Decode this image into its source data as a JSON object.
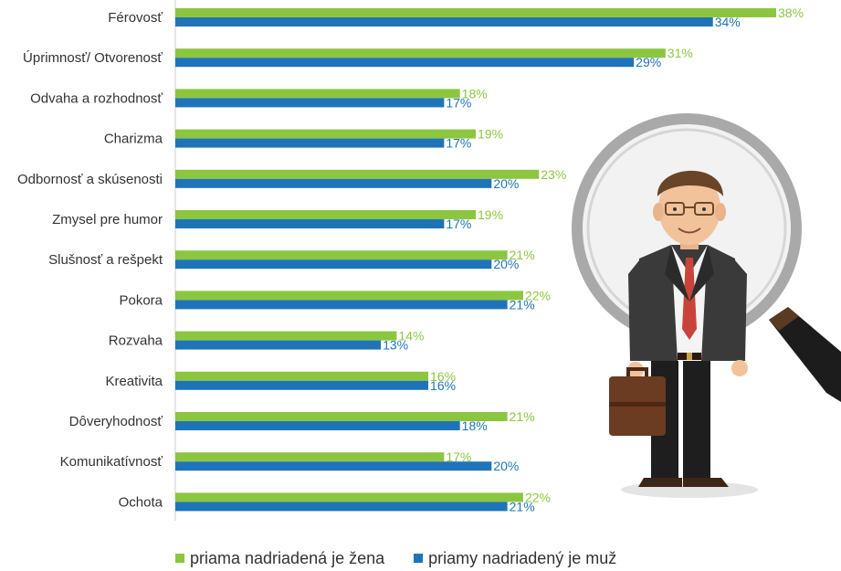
{
  "chart_data": {
    "type": "bar",
    "orientation": "horizontal",
    "categories": [
      "Férovosť",
      "Úprimnosť/ Otvorenosť",
      "Odvaha a rozhodnosť",
      "Charizma",
      "Odbornosť a skúsenosti",
      "Zmysel pre humor",
      "Slušnosť a rešpekt",
      "Pokora",
      "Rozvaha",
      "Kreativita",
      "Dôveryhodnosť",
      "Komunikatívnosť",
      "Ochota"
    ],
    "series": [
      {
        "name": "priama nadriadená je žena",
        "color": "#8cc63f",
        "values": [
          38,
          31,
          18,
          19,
          23,
          19,
          21,
          22,
          14,
          16,
          21,
          17,
          22
        ],
        "labels": [
          "38%",
          "31%",
          "18%",
          "19%",
          "23%",
          "19%",
          "21%",
          "22%",
          "14%",
          "16%",
          "21%",
          "17%",
          "22%"
        ]
      },
      {
        "name": "priamy nadriadený je muž",
        "color": "#1f74b9",
        "values": [
          34,
          29,
          17,
          17,
          20,
          17,
          20,
          21,
          13,
          16,
          18,
          20,
          21
        ],
        "labels": [
          "34%",
          "29%",
          "17%",
          "17%",
          "20%",
          "17%",
          "20%",
          "21%",
          "13%",
          "16%",
          "18%",
          "20%",
          "21%"
        ]
      }
    ],
    "xlim": [
      0,
      38
    ]
  },
  "illustration": {
    "description_icon": "businessman-with-magnifying-glass-icon"
  }
}
